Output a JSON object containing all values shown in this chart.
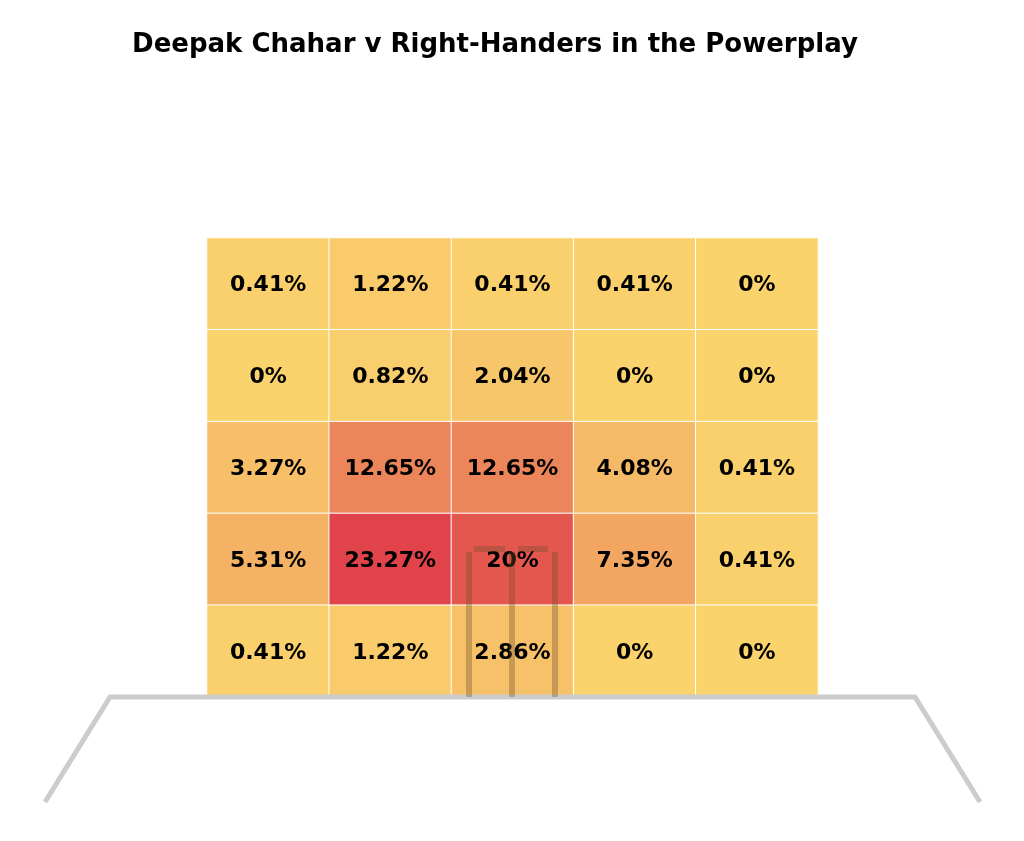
{
  "chart_data": {
    "type": "heatmap",
    "title": "Deepak Chahar v Right-Handers in the Powerplay",
    "categories": [
      null,
      null,
      null,
      null,
      null
    ],
    "y_categories": [
      null,
      null,
      null,
      null,
      null
    ],
    "cells": [
      [
        0.41,
        1.22,
        0.41,
        0.41,
        0
      ],
      [
        0,
        0.82,
        2.04,
        0,
        0
      ],
      [
        3.27,
        12.65,
        12.65,
        4.08,
        0.41
      ],
      [
        5.31,
        23.27,
        20,
        7.35,
        0.41
      ],
      [
        0.41,
        1.22,
        2.86,
        0,
        0
      ]
    ],
    "cell_labels": [
      [
        "0.41%",
        "1.22%",
        "0.41%",
        "0.41%",
        "0%"
      ],
      [
        "0%",
        "0.82%",
        "2.04%",
        "0%",
        "0%"
      ],
      [
        "3.27%",
        "12.65%",
        "12.65%",
        "4.08%",
        "0.41%"
      ],
      [
        "5.31%",
        "23.27%",
        "20%",
        "7.35%",
        "0.41%"
      ],
      [
        "0.41%",
        "1.22%",
        "2.86%",
        "0%",
        "0%"
      ]
    ],
    "colors": [
      "#fad36d",
      "#e0434a"
    ]
  }
}
